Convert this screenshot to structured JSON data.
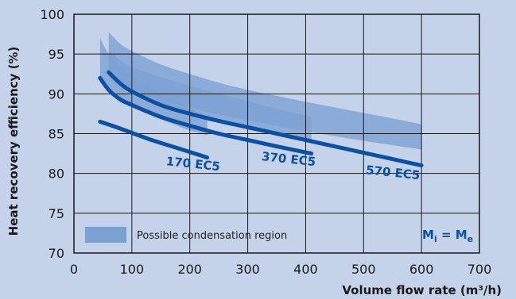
{
  "chart_data": {
    "type": "area",
    "title": "",
    "xlabel": "Volume flow rate (m³/h)",
    "ylabel": "Heat recovery efficiency (%)",
    "xlim": [
      0,
      700
    ],
    "ylim": [
      70,
      100
    ],
    "x_ticks": [
      "0",
      "100",
      "200",
      "300",
      "400",
      "500",
      "600",
      "700"
    ],
    "y_ticks": [
      "70",
      "75",
      "80",
      "85",
      "90",
      "95",
      "100"
    ],
    "grid": true,
    "bands": [
      {
        "name": "170 EC5",
        "x": [
          45,
          60,
          80,
          100,
          130,
          160,
          200,
          230
        ],
        "upper": [
          97.0,
          95.0,
          93.4,
          92.3,
          90.9,
          89.7,
          88.2,
          87.2
        ],
        "lower": [
          91.5,
          90.3,
          89.2,
          88.4,
          87.4,
          86.5,
          85.4,
          84.8
        ]
      },
      {
        "name": "370 EC5",
        "x": [
          60,
          80,
          100,
          150,
          200,
          250,
          300,
          350,
          410
        ],
        "upper": [
          95.5,
          94.2,
          93.4,
          92.1,
          91.0,
          90.0,
          89.1,
          88.1,
          87.1
        ],
        "lower": [
          92.8,
          91.5,
          90.6,
          88.8,
          87.6,
          86.5,
          85.6,
          84.8,
          83.8
        ]
      },
      {
        "name": "570 EC5",
        "x": [
          60,
          80,
          100,
          150,
          200,
          250,
          300,
          400,
          500,
          600
        ],
        "upper": [
          97.8,
          96.3,
          95.4,
          93.7,
          92.5,
          91.4,
          90.5,
          89.0,
          87.6,
          86.2
        ],
        "lower": [
          92.8,
          91.6,
          90.8,
          89.3,
          88.3,
          87.4,
          86.7,
          85.3,
          84.1,
          83.0
        ]
      }
    ],
    "series": [
      {
        "name": "170 EC5",
        "x": [
          45,
          70,
          100,
          130,
          160,
          200,
          230
        ],
        "y": [
          86.5,
          85.9,
          85.1,
          84.3,
          83.6,
          82.7,
          82.0
        ]
      },
      {
        "name": "370 EC5",
        "x": [
          45,
          60,
          80,
          100,
          150,
          200,
          250,
          300,
          350,
          410
        ],
        "y": [
          92.0,
          90.5,
          89.3,
          88.6,
          87.1,
          86.0,
          85.0,
          84.2,
          83.4,
          82.5
        ]
      },
      {
        "name": "570 EC5",
        "x": [
          60,
          80,
          100,
          150,
          200,
          250,
          300,
          350,
          400,
          450,
          500,
          550,
          600
        ],
        "y": [
          92.7,
          91.3,
          90.3,
          88.6,
          87.5,
          86.6,
          85.8,
          85.0,
          84.2,
          83.4,
          82.6,
          81.8,
          81.0
        ]
      }
    ],
    "legend": {
      "label": "Possible condensation region",
      "formula_left": "M",
      "formula_left_sub": "i",
      "formula_eq": " = ",
      "formula_right": "M",
      "formula_right_sub": "e"
    },
    "colors": {
      "band": "#7ba0d2",
      "band_border": "#6a93c9",
      "line": "#0d4fa1",
      "plot_bg": "#c5d3ea",
      "grid": "#1a1a1a"
    }
  }
}
